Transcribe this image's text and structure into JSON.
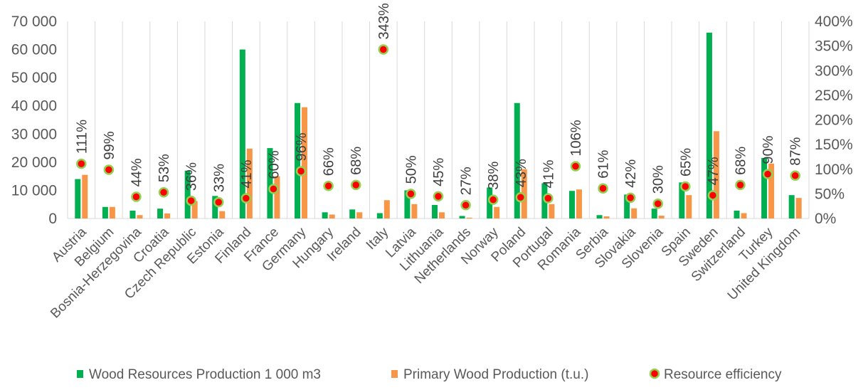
{
  "chart_data": {
    "type": "bar",
    "categories": [
      "Austria",
      "Belgium",
      "Bosnia-Herzegovina",
      "Croatia",
      "Czech Republic",
      "Estonia",
      "Finland",
      "France",
      "Germany",
      "Hungary",
      "Ireland",
      "Italy",
      "Latvia",
      "Lithuania",
      "Netherlands",
      "Norway",
      "Poland",
      "Portugal",
      "Romania",
      "Serbia",
      "Slovakia",
      "Slovenia",
      "Spain",
      "Sweden",
      "Switzerland",
      "Turkey",
      "United Kingdom"
    ],
    "series": [
      {
        "name": "Wood Resources Production 1 000 m3",
        "type": "bar",
        "axis": "left",
        "color": "#00b050",
        "values": [
          14000,
          4100,
          2800,
          3500,
          17000,
          8000,
          60000,
          25000,
          41000,
          2200,
          3200,
          1900,
          10000,
          4800,
          900,
          11000,
          41000,
          12500,
          9800,
          1200,
          8500,
          3500,
          12800,
          66000,
          2800,
          21500,
          8300
        ]
      },
      {
        "name": "Primary Wood Production (t.u.)",
        "type": "bar",
        "axis": "left",
        "color": "#f79646",
        "values": [
          15500,
          4100,
          1200,
          1800,
          6200,
          2600,
          24800,
          15000,
          39500,
          1400,
          2200,
          6500,
          5100,
          2200,
          300,
          4100,
          17500,
          5100,
          10300,
          750,
          3600,
          1000,
          8300,
          31000,
          1900,
          19500,
          7300
        ]
      },
      {
        "name": "Resource efficiency",
        "type": "scatter",
        "axis": "right",
        "color": "#ff0000",
        "edge_color": "#92d050",
        "values": [
          111,
          99,
          44,
          53,
          36,
          33,
          41,
          60,
          96,
          66,
          68,
          343,
          50,
          45,
          27,
          38,
          43,
          41,
          106,
          61,
          42,
          30,
          65,
          47,
          68,
          90,
          87
        ],
        "labels": [
          "111%",
          "99%",
          "44%",
          "53%",
          "36%",
          "33%",
          "41%",
          "60%",
          "96%",
          "66%",
          "68%",
          "343%",
          "50%",
          "45%",
          "27%",
          "38%",
          "43%",
          "41%",
          "106%",
          "61%",
          "42%",
          "30%",
          "65%",
          "47%",
          "68%",
          "90%",
          "87%"
        ]
      }
    ],
    "y_left": {
      "ylim": [
        0,
        70000
      ],
      "ticks": [
        0,
        10000,
        20000,
        30000,
        40000,
        50000,
        60000,
        70000
      ],
      "tick_labels": [
        "0",
        "10 000",
        "20 000",
        "30 000",
        "40 000",
        "50 000",
        "60 000",
        "70 000"
      ]
    },
    "y_right": {
      "ylim": [
        0,
        400
      ],
      "ticks": [
        0,
        50,
        100,
        150,
        200,
        250,
        300,
        350,
        400
      ],
      "tick_labels": [
        "0%",
        "50%",
        "100%",
        "150%",
        "200%",
        "250%",
        "300%",
        "350%",
        "400%"
      ]
    },
    "grid": {
      "vertical": true,
      "horizontal": false
    },
    "legend": {
      "position": "bottom",
      "entries": [
        "Wood Resources Production 1 000 m3",
        "Primary Wood Production (t.u.)",
        "Resource efficiency"
      ]
    }
  }
}
